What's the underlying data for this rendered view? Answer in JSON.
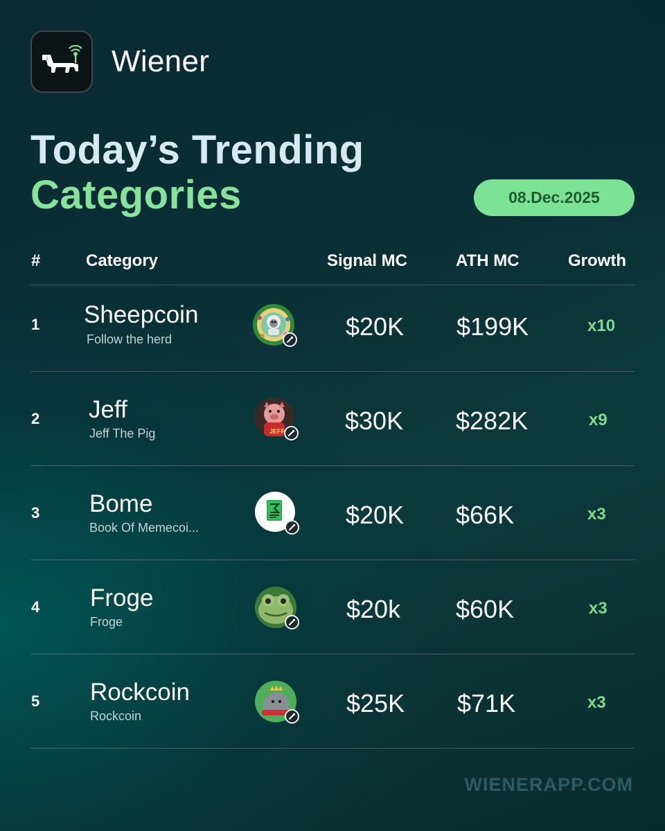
{
  "brand": {
    "name": "Wiener",
    "logo_icon": "dachshund-antenna-icon"
  },
  "title": {
    "line1": "Today’s Trending",
    "line2": "Categories"
  },
  "date": "08.Dec.2025",
  "table": {
    "headers": {
      "rank": "#",
      "category": "Category",
      "signal": "Signal MC",
      "ath": "ATH MC",
      "growth": "Growth"
    },
    "rows": [
      {
        "rank": "1",
        "name": "Sheepcoin",
        "sub": "Follow the herd",
        "signal": "$20K",
        "ath": "$199K",
        "growth": "x10",
        "avatar_icon": "sheep-avatar-icon"
      },
      {
        "rank": "2",
        "name": "Jeff",
        "sub": "Jeff The Pig",
        "signal": "$30K",
        "ath": "$282K",
        "growth": "x9",
        "avatar_icon": "pig-avatar-icon"
      },
      {
        "rank": "3",
        "name": "Bome",
        "sub": "Book Of Memecoi...",
        "signal": "$20K",
        "ath": "$66K",
        "growth": "x3",
        "avatar_icon": "book-avatar-icon"
      },
      {
        "rank": "4",
        "name": "Froge",
        "sub": "Froge",
        "signal": "$20k",
        "ath": "$60K",
        "growth": "x3",
        "avatar_icon": "frog-avatar-icon"
      },
      {
        "rank": "5",
        "name": "Rockcoin",
        "sub": "Rockcoin",
        "signal": "$25K",
        "ath": "$71K",
        "growth": "x3",
        "avatar_icon": "rock-avatar-icon"
      }
    ]
  },
  "footer": "WIENERAPP.COM",
  "colors": {
    "accent_green": "#7de394",
    "title_blue": "#d6e9f4",
    "growth_green": "#7fdb8a"
  }
}
